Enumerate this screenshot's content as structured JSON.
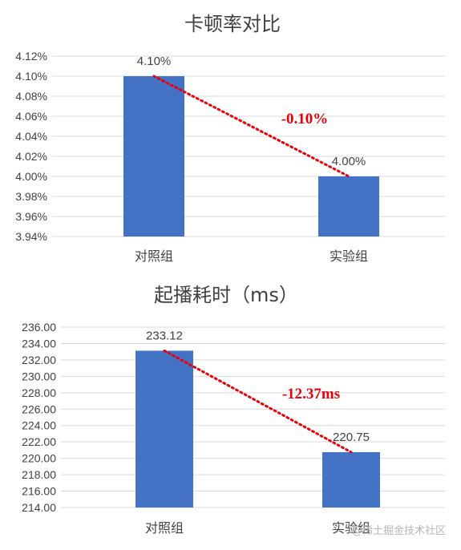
{
  "chart_data": [
    {
      "type": "bar",
      "title": "卡顿率对比",
      "categories": [
        "对照组",
        "实验组"
      ],
      "values": [
        4.1,
        4.0
      ],
      "value_labels": [
        "4.10%",
        "4.00%"
      ],
      "ylim": [
        3.94,
        4.12
      ],
      "yticks": [
        "4.12%",
        "4.10%",
        "4.08%",
        "4.06%",
        "4.04%",
        "4.02%",
        "4.00%",
        "3.98%",
        "3.96%",
        "3.94%"
      ],
      "annotation": "-0.10%",
      "bar_color": "#4472c4",
      "trend_color": "#e8000b",
      "grid": true
    },
    {
      "type": "bar",
      "title": "起播耗时（ms）",
      "categories": [
        "对照组",
        "实验组"
      ],
      "values": [
        233.12,
        220.75
      ],
      "value_labels": [
        "233.12",
        "220.75"
      ],
      "ylim": [
        214,
        236
      ],
      "yticks": [
        "236.00",
        "234.00",
        "232.00",
        "230.00",
        "228.00",
        "226.00",
        "224.00",
        "222.00",
        "220.00",
        "218.00",
        "216.00",
        "214.00"
      ],
      "annotation": "-12.37ms",
      "bar_color": "#4472c4",
      "trend_color": "#e8000b",
      "grid": true
    }
  ],
  "watermark": "@稀土掘金技术社区"
}
